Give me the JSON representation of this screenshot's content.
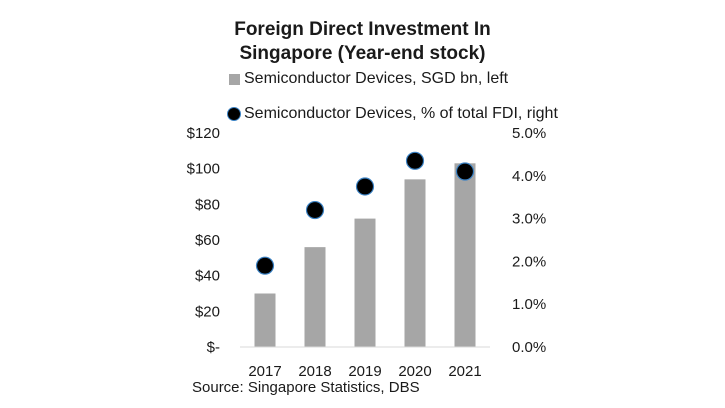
{
  "chart_data": {
    "type": "bar",
    "title_lines": [
      "Foreign Direct Investment In",
      "Singapore (Year-end stock)"
    ],
    "categories": [
      "2017",
      "2018",
      "2019",
      "2020",
      "2021"
    ],
    "series": [
      {
        "name": "Semiconductor Devices, SGD bn, left",
        "type": "bar",
        "axis": "left",
        "values": [
          30,
          56,
          72,
          94,
          103
        ]
      },
      {
        "name": "Semiconductor Devices, % of total FDI, right",
        "type": "scatter",
        "axis": "right",
        "values": [
          1.9,
          3.2,
          3.75,
          4.35,
          4.1
        ]
      }
    ],
    "y_left": {
      "ylim": [
        0,
        120
      ],
      "ticks": [
        0,
        20,
        40,
        60,
        80,
        100,
        120
      ],
      "tick_labels": [
        "$-",
        "$20",
        "$40",
        "$60",
        "$80",
        "$100",
        "$120"
      ]
    },
    "y_right": {
      "ylim": [
        0,
        5
      ],
      "ticks": [
        0,
        1,
        2,
        3,
        4,
        5
      ],
      "tick_labels": [
        "0.0%",
        "1.0%",
        "2.0%",
        "3.0%",
        "4.0%",
        "5.0%"
      ]
    },
    "grid": false,
    "legend_position": "top",
    "colors": {
      "bar": "#a6a6a6",
      "marker": "#000000",
      "marker_edge": "#3b82c4",
      "axis": "#d9d9d9"
    },
    "source": "Source: Singapore Statistics, DBS"
  }
}
